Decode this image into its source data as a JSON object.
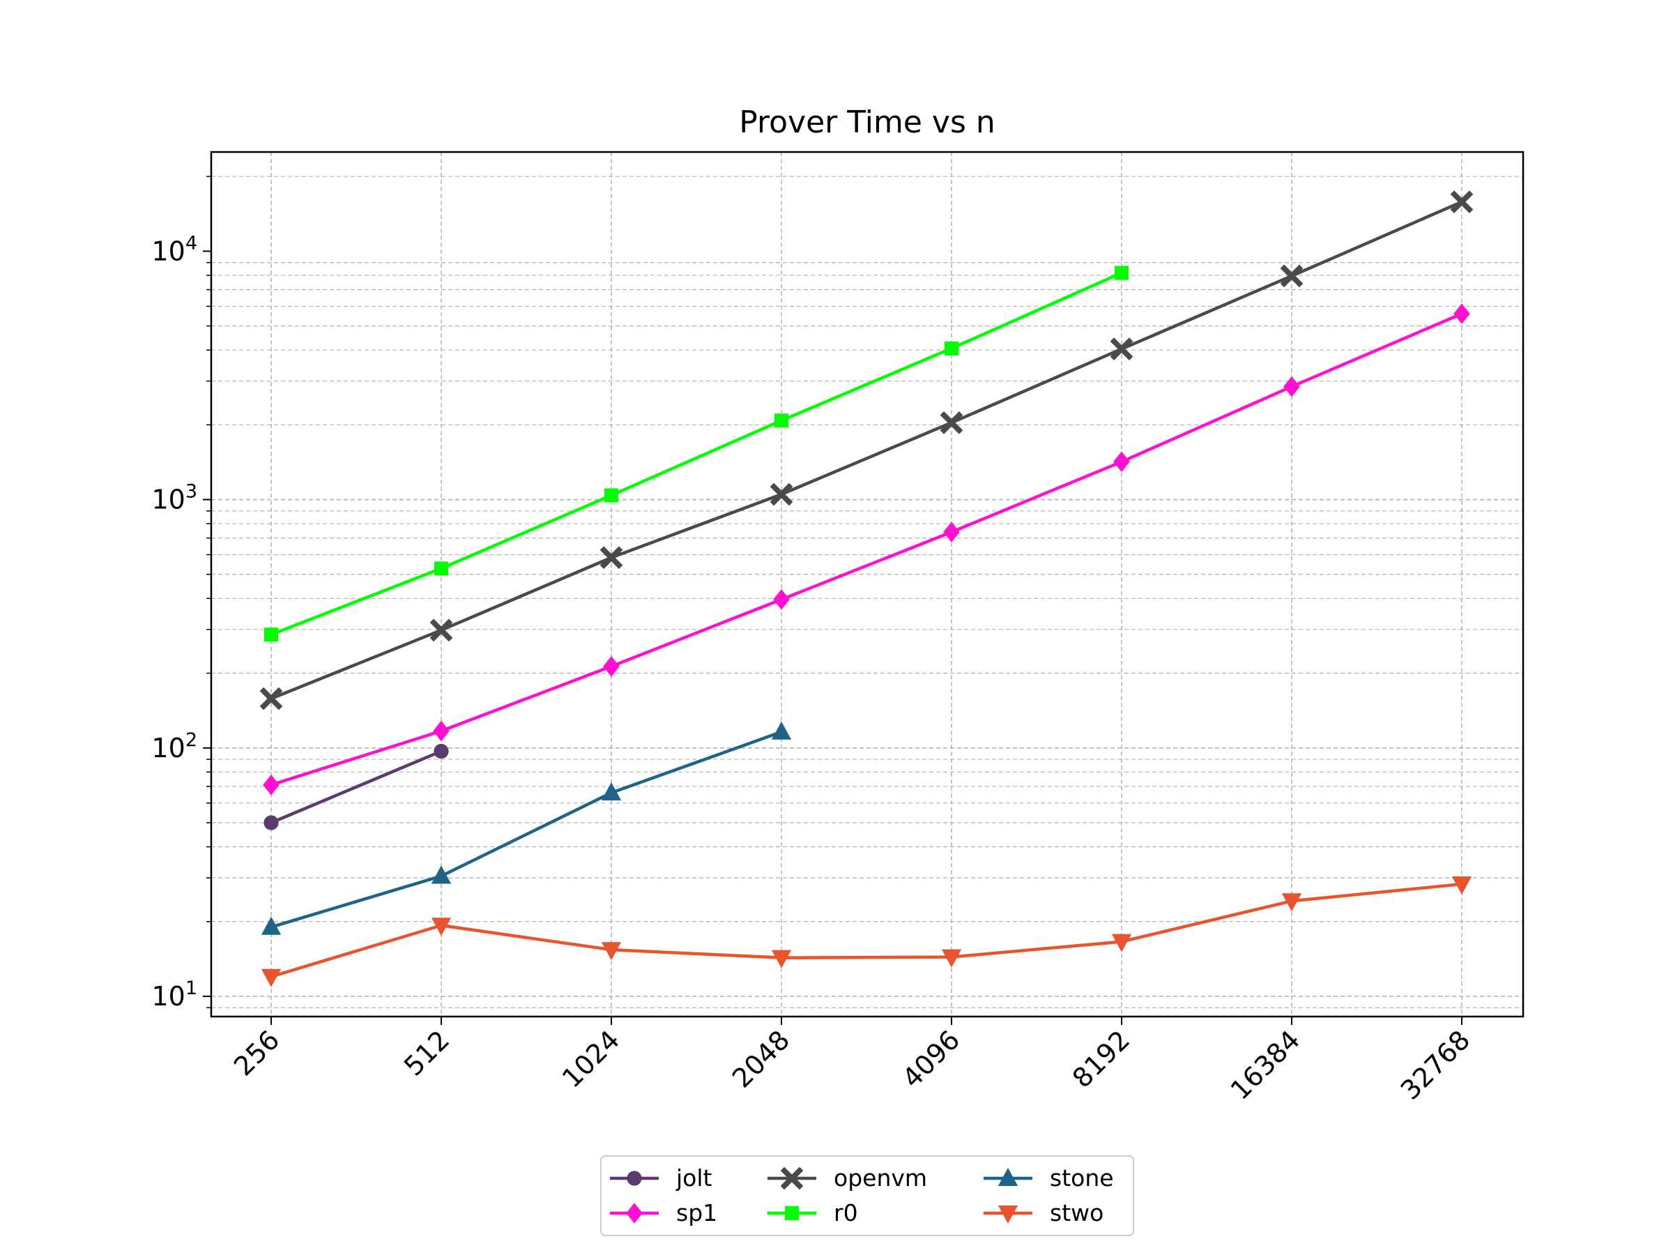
{
  "chart_data": {
    "type": "line",
    "title": "Prover Time vs n",
    "xlabel": "",
    "ylabel": "",
    "x": [
      256,
      512,
      1024,
      2048,
      4096,
      8192,
      16384,
      32768
    ],
    "x_tick_labels": [
      "256",
      "512",
      "1024",
      "2048",
      "4096",
      "8192",
      "16384",
      "32768"
    ],
    "y_scale": "log",
    "ylim": [
      8.5,
      22000
    ],
    "y_ticks": [
      {
        "base": "10",
        "exp": "1",
        "value": 10
      },
      {
        "base": "10",
        "exp": "2",
        "value": 100
      },
      {
        "base": "10",
        "exp": "3",
        "value": 1000
      },
      {
        "base": "10",
        "exp": "4",
        "value": 10000
      }
    ],
    "grid": true,
    "legend_position": "bottom-center",
    "series": [
      {
        "name": "jolt",
        "color": "#5b3a6e",
        "marker": "circle",
        "values": [
          50,
          97,
          null,
          null,
          null,
          null,
          null,
          null
        ]
      },
      {
        "name": "sp1",
        "color": "#ff10d0",
        "marker": "diamond",
        "values": [
          71,
          117,
          213,
          396,
          740,
          1420,
          2850,
          5600
        ]
      },
      {
        "name": "openvm",
        "color": "#4a4a4a",
        "marker": "x",
        "values": [
          158,
          298,
          584,
          1050,
          2040,
          4040,
          7950,
          15800
        ]
      },
      {
        "name": "r0",
        "color": "#00ff00",
        "marker": "square",
        "values": [
          286,
          528,
          1040,
          2080,
          4060,
          8180,
          null,
          null
        ]
      },
      {
        "name": "stone",
        "color": "#1f6486",
        "marker": "triangle-up",
        "values": [
          19,
          30.5,
          66,
          116,
          null,
          null,
          null,
          null
        ]
      },
      {
        "name": "stwo",
        "color": "#e8542e",
        "marker": "triangle-down",
        "values": [
          12,
          19.3,
          15.4,
          14.3,
          14.4,
          16.6,
          24.2,
          28.3
        ]
      }
    ]
  }
}
